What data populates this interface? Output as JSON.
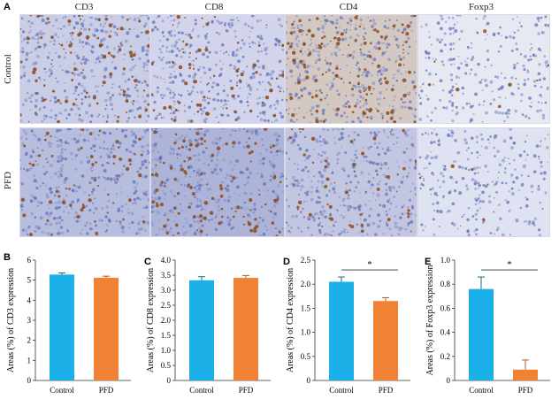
{
  "panel_a": {
    "letter": "A",
    "columns": [
      "CD3",
      "CD8",
      "CD4",
      "Foxp3"
    ],
    "rows": [
      "Control",
      "PFD"
    ]
  },
  "colors": {
    "control": "#1cb0e8",
    "pfd": "#ef8235",
    "stain_blue": "#7a86c2",
    "stain_brown": "#8b4a1c"
  },
  "chart_data": [
    {
      "letter": "B",
      "type": "bar",
      "categories": [
        "Control",
        "PFD"
      ],
      "values": [
        5.28,
        5.12
      ],
      "errors": [
        0.08,
        0.08
      ],
      "ylabel": "Areas (%) of CD3 expression",
      "ylim": [
        0,
        6
      ],
      "yticks": [
        "0",
        "1",
        "2",
        "3",
        "4",
        "5",
        "6"
      ],
      "significance": ""
    },
    {
      "letter": "C",
      "type": "bar",
      "categories": [
        "Control",
        "PFD"
      ],
      "values": [
        3.33,
        3.41
      ],
      "errors": [
        0.12,
        0.08
      ],
      "ylabel": "Areas (%) of CD8 expression",
      "ylim": [
        0,
        4.0
      ],
      "yticks": [
        "0",
        "0.5",
        "1.0",
        "1.5",
        "2.0",
        "2.5",
        "3.0",
        "3.5",
        "4.0"
      ],
      "significance": ""
    },
    {
      "letter": "D",
      "type": "bar",
      "categories": [
        "Control",
        "PFD"
      ],
      "values": [
        2.05,
        1.65
      ],
      "errors": [
        0.1,
        0.07
      ],
      "ylabel": "Areas (%) of CD4 expression",
      "ylim": [
        0,
        2.5
      ],
      "yticks": [
        "0",
        "0.5",
        "1.0",
        "1.5",
        "2.0",
        "2.5"
      ],
      "significance": "*"
    },
    {
      "letter": "E",
      "type": "bar",
      "categories": [
        "Control",
        "PFD"
      ],
      "values": [
        0.76,
        0.09
      ],
      "errors": [
        0.1,
        0.08
      ],
      "ylabel": "Areas (%) of Foxp3 expression",
      "ylim": [
        0,
        1.0
      ],
      "yticks": [
        "0",
        "0.2",
        "0.4",
        "0.6",
        "0.8",
        "1.0"
      ],
      "significance": "*"
    }
  ]
}
